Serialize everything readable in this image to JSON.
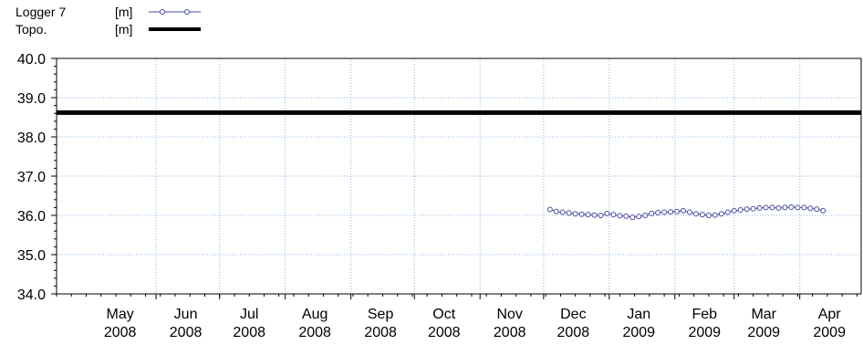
{
  "chart_data": {
    "type": "line",
    "legend": [
      {
        "name": "Logger 7",
        "unit": "[m]",
        "color": "#4a4aa0",
        "style": "line-with-circles"
      },
      {
        "name": "Topo.",
        "unit": "[m]",
        "color": "#000000",
        "style": "thick-line"
      }
    ],
    "y_ticks": [
      "34.0",
      "35.0",
      "36.0",
      "37.0",
      "38.0",
      "39.0",
      "40.0"
    ],
    "ylim": [
      34.0,
      40.0
    ],
    "x_range": [
      "2008-04-15",
      "2009-04-30"
    ],
    "x_ticks": [
      {
        "month": "May",
        "year": "2008",
        "date": "2008-05-15"
      },
      {
        "month": "Jun",
        "year": "2008",
        "date": "2008-06-15"
      },
      {
        "month": "Jul",
        "year": "2008",
        "date": "2008-07-15"
      },
      {
        "month": "Aug",
        "year": "2008",
        "date": "2008-08-15"
      },
      {
        "month": "Sep",
        "year": "2008",
        "date": "2008-09-15"
      },
      {
        "month": "Oct",
        "year": "2008",
        "date": "2008-10-15"
      },
      {
        "month": "Nov",
        "year": "2008",
        "date": "2008-11-15"
      },
      {
        "month": "Dec",
        "year": "2008",
        "date": "2008-12-15"
      },
      {
        "month": "Jan",
        "year": "2009",
        "date": "2009-01-15"
      },
      {
        "month": "Feb",
        "year": "2009",
        "date": "2009-02-15"
      },
      {
        "month": "Mar",
        "year": "2009",
        "date": "2009-03-15"
      },
      {
        "month": "Apr",
        "year": "2009",
        "date": "2009-04-15"
      }
    ],
    "grid_dates": [
      "2008-06-01",
      "2008-07-01",
      "2008-08-01",
      "2008-09-01",
      "2008-10-01",
      "2008-11-01",
      "2008-12-01",
      "2009-01-01",
      "2009-02-01",
      "2009-03-01",
      "2009-04-01"
    ],
    "grid": true,
    "legend_position": "top-left",
    "series": [
      {
        "name": "Logger 7",
        "color": "#4a4aa0",
        "x": [
          "2008-12-04",
          "2008-12-07",
          "2008-12-10",
          "2008-12-13",
          "2008-12-16",
          "2008-12-19",
          "2008-12-22",
          "2008-12-25",
          "2008-12-28",
          "2008-12-31",
          "2009-01-03",
          "2009-01-06",
          "2009-01-09",
          "2009-01-12",
          "2009-01-15",
          "2009-01-18",
          "2009-01-21",
          "2009-01-24",
          "2009-01-27",
          "2009-01-30",
          "2009-02-02",
          "2009-02-05",
          "2009-02-08",
          "2009-02-11",
          "2009-02-14",
          "2009-02-17",
          "2009-02-20",
          "2009-02-23",
          "2009-02-26",
          "2009-03-01",
          "2009-03-04",
          "2009-03-07",
          "2009-03-10",
          "2009-03-13",
          "2009-03-16",
          "2009-03-19",
          "2009-03-22",
          "2009-03-25",
          "2009-03-28",
          "2009-03-31",
          "2009-04-03",
          "2009-04-06",
          "2009-04-09",
          "2009-04-12"
        ],
        "y": [
          36.15,
          36.1,
          36.08,
          36.06,
          36.04,
          36.03,
          36.02,
          36.01,
          36.0,
          36.05,
          36.02,
          35.99,
          35.98,
          35.95,
          35.97,
          36.0,
          36.05,
          36.07,
          36.08,
          36.09,
          36.1,
          36.12,
          36.08,
          36.04,
          36.02,
          36.0,
          36.01,
          36.04,
          36.08,
          36.12,
          36.14,
          36.16,
          36.17,
          36.19,
          36.2,
          36.2,
          36.19,
          36.2,
          36.21,
          36.2,
          36.2,
          36.18,
          36.16,
          36.12
        ]
      },
      {
        "name": "Topo.",
        "color": "#000000",
        "x": [
          "2008-04-15",
          "2009-04-30"
        ],
        "y": [
          38.62,
          38.62
        ]
      }
    ]
  }
}
